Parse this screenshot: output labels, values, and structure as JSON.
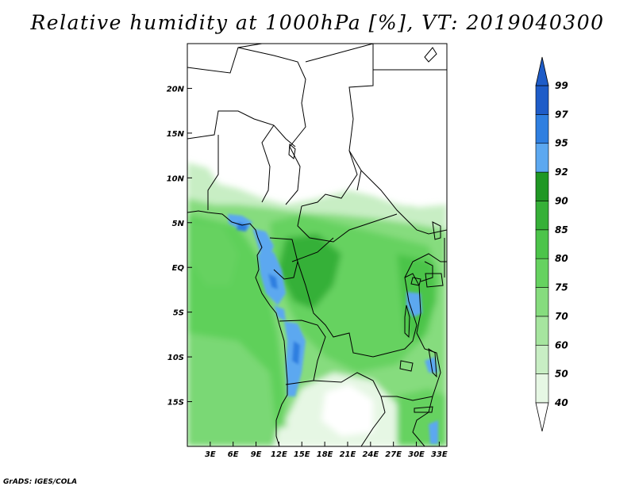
{
  "title": "Relative humidity at 1000hPa [%], VT: 2019040300",
  "credit": "GrADS: IGES/COLA",
  "map": {
    "lon_ticks": [
      "3E",
      "6E",
      "9E",
      "12E",
      "15E",
      "18E",
      "21E",
      "24E",
      "27E",
      "30E",
      "33E"
    ],
    "lat_ticks": [
      "20N",
      "15N",
      "10N",
      "5N",
      "EQ",
      "5S",
      "10S",
      "15S"
    ],
    "lon_range": [
      0,
      34
    ],
    "lat_range": [
      -20,
      25
    ]
  },
  "colorbar": {
    "levels": [
      "40",
      "50",
      "60",
      "70",
      "75",
      "80",
      "85",
      "90",
      "92",
      "95",
      "97",
      "99"
    ],
    "colors": [
      "#ffffff",
      "#e6f7e4",
      "#c8eec4",
      "#a6e59f",
      "#86dc7e",
      "#66d260",
      "#4cc44a",
      "#36b038",
      "#1f9724",
      "#5ca8f0",
      "#2f7fe0",
      "#1e5cc8"
    ]
  }
}
